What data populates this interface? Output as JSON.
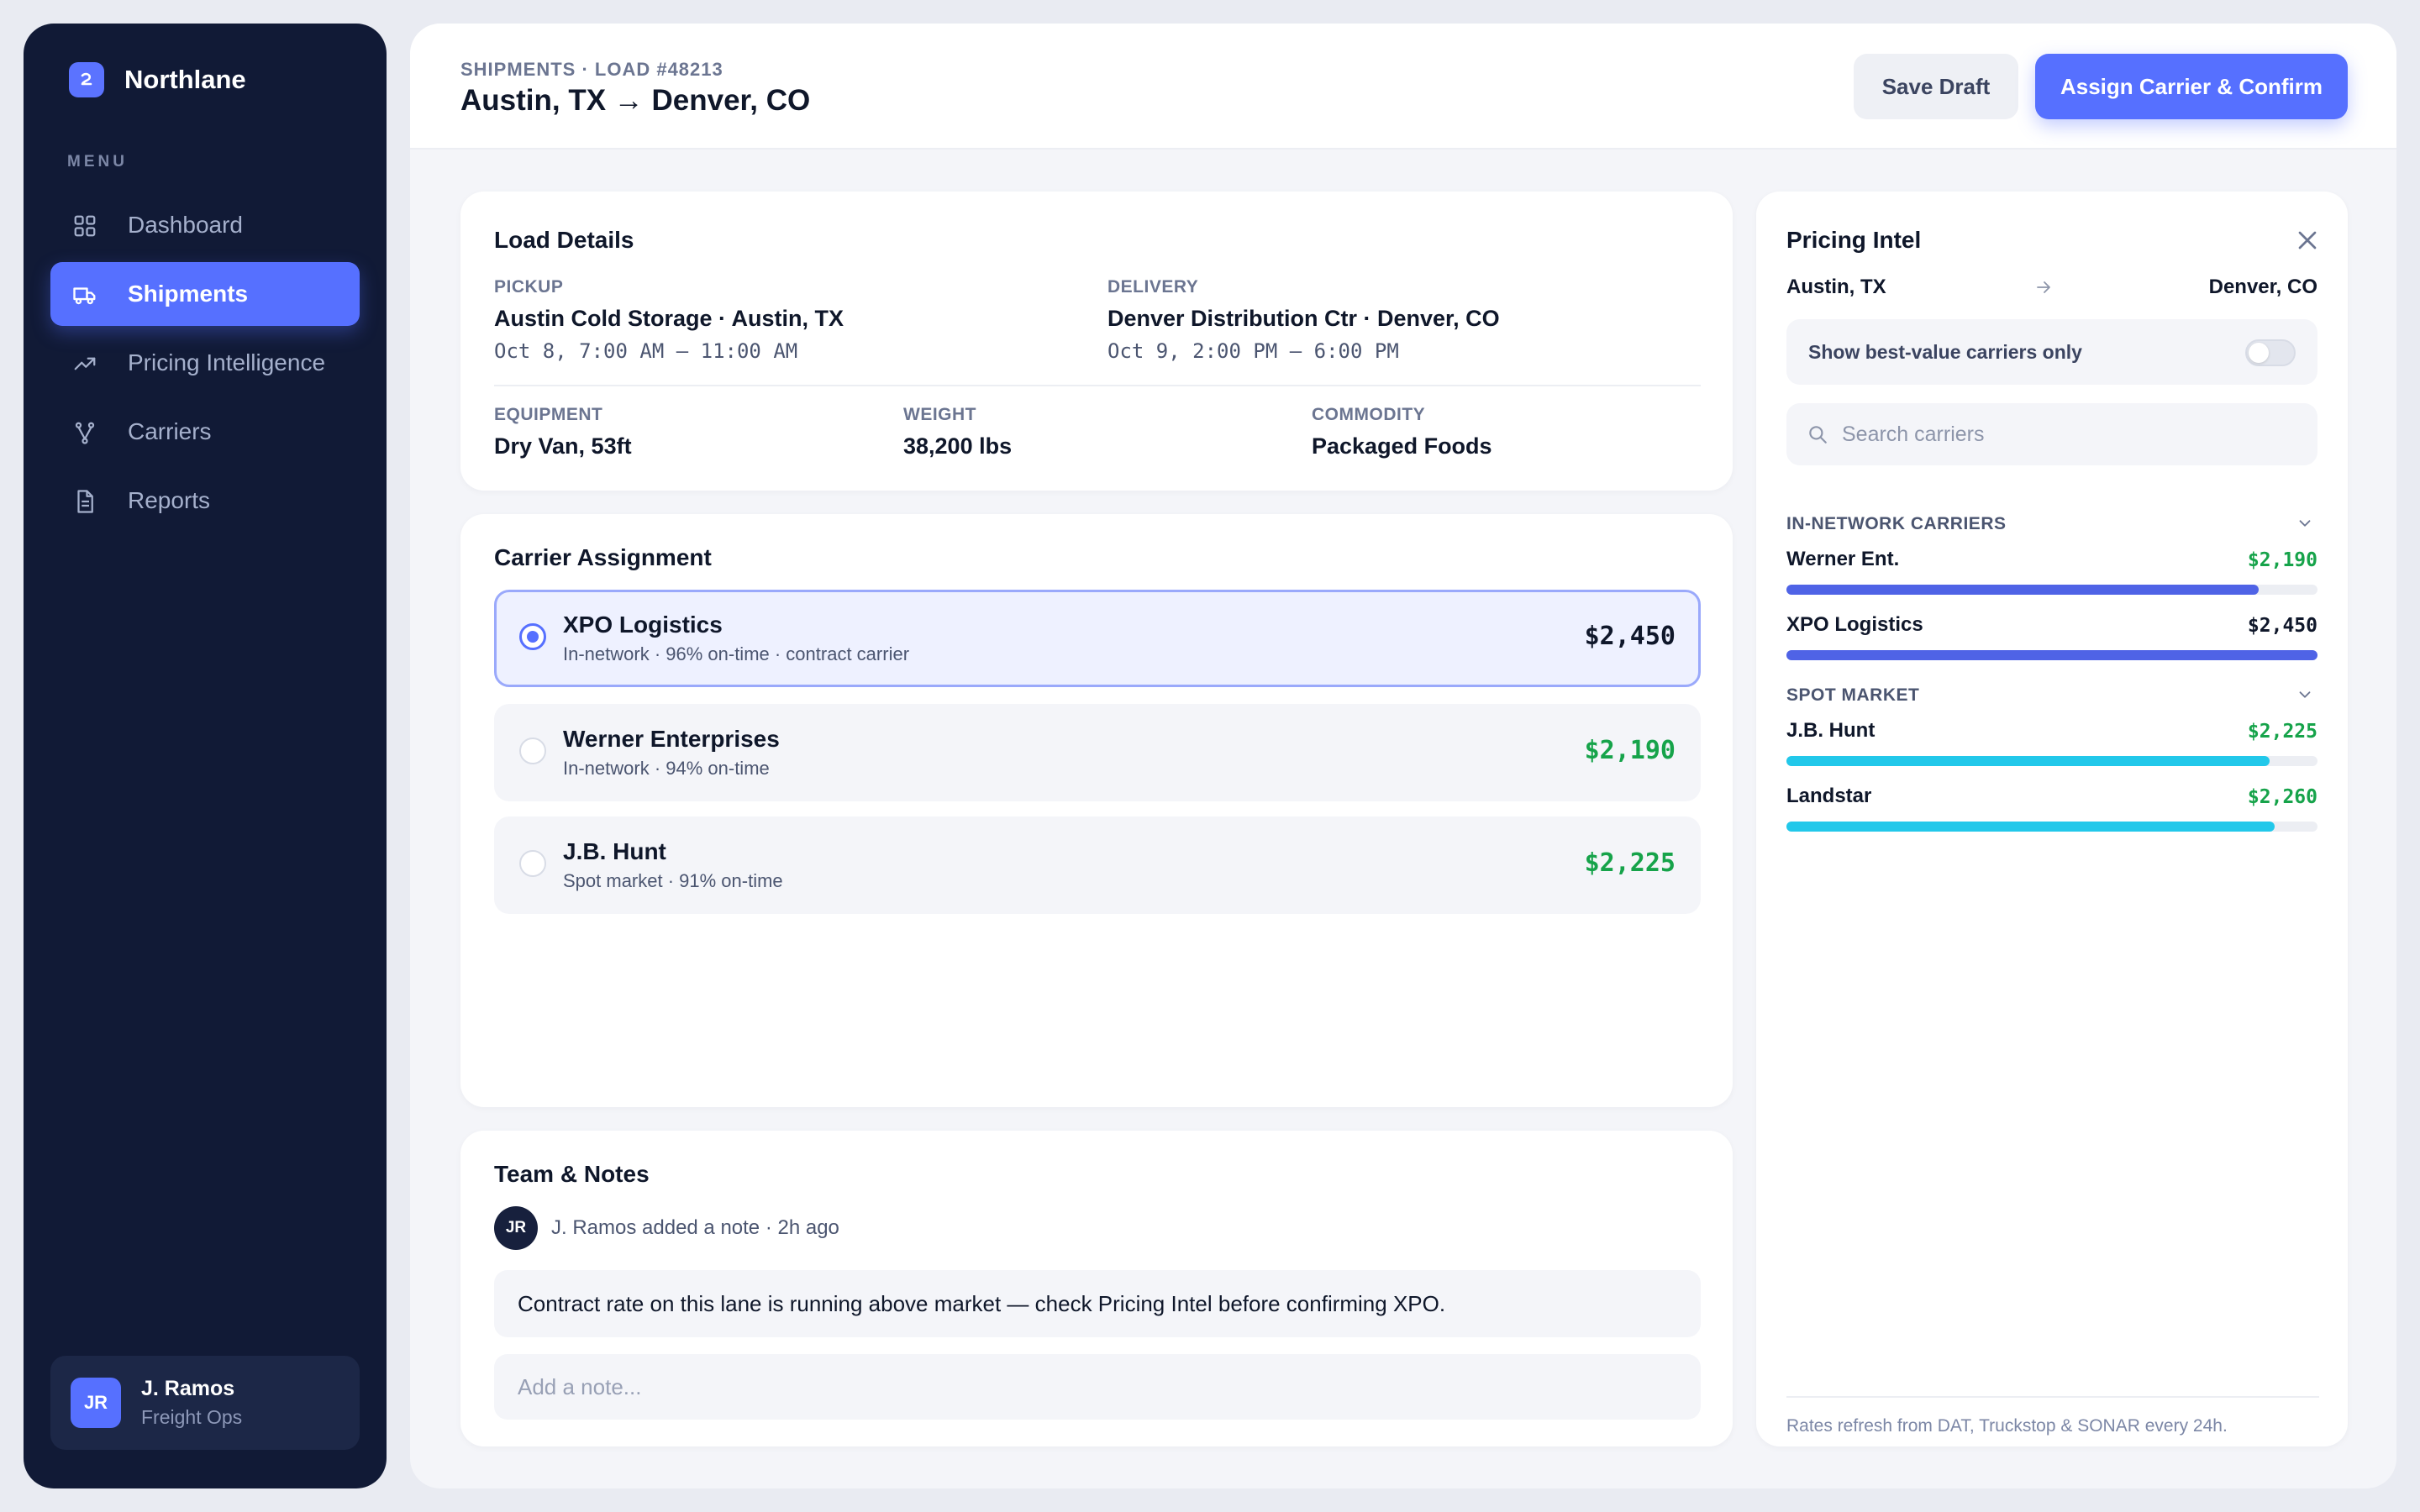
{
  "app": {
    "name": "Northlane"
  },
  "sidebar": {
    "menu_label": "MENU",
    "items": [
      {
        "label": "Dashboard",
        "icon": "grid-icon"
      },
      {
        "label": "Shipments",
        "icon": "truck-icon",
        "active": true
      },
      {
        "label": "Pricing Intelligence",
        "icon": "trend-icon"
      },
      {
        "label": "Carriers",
        "icon": "branch-icon"
      },
      {
        "label": "Reports",
        "icon": "document-icon"
      }
    ],
    "user": {
      "initials": "JR",
      "name": "J. Ramos",
      "role": "Freight Ops"
    }
  },
  "header": {
    "breadcrumb": "SHIPMENTS · LOAD #48213",
    "title": "Austin, TX → Denver, CO",
    "save_draft": "Save Draft",
    "assign": "Assign Carrier & Confirm"
  },
  "load_details": {
    "title": "Load Details",
    "pickup_label": "PICKUP",
    "pickup_location": "Austin Cold Storage · Austin, TX",
    "pickup_window": "Oct 8, 7:00 AM – 11:00 AM",
    "delivery_label": "DELIVERY",
    "delivery_location": "Denver Distribution Ctr · Denver, CO",
    "delivery_window": "Oct 9, 2:00 PM – 6:00 PM",
    "equipment_label": "EQUIPMENT",
    "equipment": "Dry Van, 53ft",
    "weight_label": "WEIGHT",
    "weight": "38,200 lbs",
    "commodity_label": "COMMODITY",
    "commodity": "Packaged Foods"
  },
  "carrier_assignment": {
    "title": "Carrier Assignment",
    "options": [
      {
        "name": "XPO Logistics",
        "sub": "In-network · 96% on-time · contract carrier",
        "price": "$2,450",
        "selected": true,
        "price_color": "#0f172a"
      },
      {
        "name": "Werner Enterprises",
        "sub": "In-network · 94% on-time",
        "price": "$2,190",
        "selected": false,
        "price_color": "#16a34a"
      },
      {
        "name": "J.B. Hunt",
        "sub": "Spot market · 91% on-time",
        "price": "$2,225",
        "selected": false,
        "price_color": "#16a34a"
      }
    ]
  },
  "notes": {
    "title": "Team & Notes",
    "author_initials": "JR",
    "meta": "J. Ramos added a note · 2h ago",
    "body": "Contract rate on this lane is running above market — check Pricing Intel before confirming XPO.",
    "input_placeholder": "Add a note..."
  },
  "pricing_intel": {
    "title": "Pricing Intel",
    "from": "Austin, TX",
    "to": "Denver, CO",
    "toggle_label": "Show best-value carriers only",
    "toggle_on": false,
    "search_placeholder": "Search carriers",
    "in_network_label": "IN-NETWORK CARRIERS",
    "in_network": [
      {
        "name": "Werner Ent.",
        "price": "$2,190",
        "fill": 0.89,
        "price_color": "#16a34a",
        "bar_color": "#4f63e6"
      },
      {
        "name": "XPO Logistics",
        "price": "$2,450",
        "fill": 1.0,
        "price_color": "#0f172a",
        "bar_color": "#4f63e6"
      }
    ],
    "spot_label": "SPOT MARKET",
    "spot": [
      {
        "name": "J.B. Hunt",
        "price": "$2,225",
        "fill": 0.91,
        "price_color": "#16a34a",
        "bar_color": "#22c8ea"
      },
      {
        "name": "Landstar",
        "price": "$2,260",
        "fill": 0.92,
        "price_color": "#16a34a",
        "bar_color": "#22c8ea"
      }
    ],
    "footnote": "Rates refresh from DAT, Truckstop & SONAR every 24h."
  }
}
